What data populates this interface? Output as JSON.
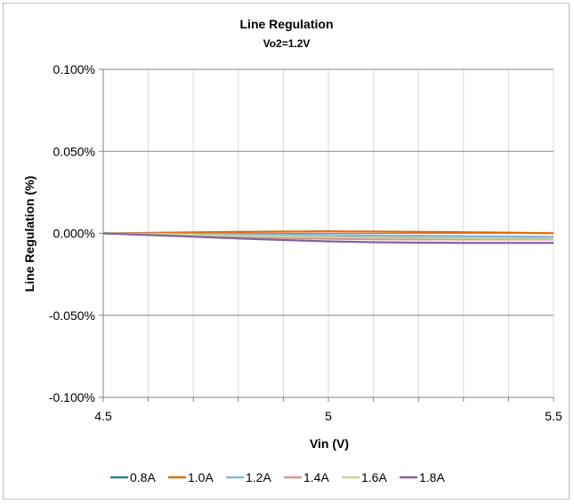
{
  "chart_data": {
    "type": "line",
    "title": "Line Regulation",
    "subtitle": "Vo2=1.2V",
    "xlabel": "Vin (V)",
    "ylabel": "Line Regulation (%)",
    "xlim": [
      4.5,
      5.5
    ],
    "ylim": [
      -0.1,
      0.1
    ],
    "x_ticks": [
      4.5,
      5,
      5.5
    ],
    "x_tick_labels": [
      "4.5",
      "5",
      "5.5"
    ],
    "y_ticks": [
      0.1,
      0.05,
      0.0,
      -0.05,
      -0.1
    ],
    "y_tick_labels": [
      "0.100%",
      "0.050%",
      "0.000%",
      "-0.050%",
      "-0.100%"
    ],
    "x_gridlines": [
      4.5,
      4.6,
      4.7,
      4.8,
      4.9,
      5.0,
      5.1,
      5.2,
      5.3,
      5.4,
      5.5
    ],
    "grid": true,
    "legend_position": "bottom",
    "x": [
      4.5,
      4.6,
      4.7,
      4.8,
      4.9,
      5.0,
      5.1,
      5.2,
      5.3,
      5.4,
      5.5
    ],
    "series": [
      {
        "name": "0.8A",
        "color": "#2e7d9a",
        "values": [
          0.0,
          -0.0005,
          -0.001,
          -0.0014,
          -0.0017,
          -0.002,
          -0.0022,
          -0.0024,
          -0.0025,
          -0.0026,
          -0.0027
        ]
      },
      {
        "name": "1.0A",
        "color": "#e46c0a",
        "values": [
          0.0,
          0.0003,
          0.0006,
          0.0009,
          0.0011,
          0.0012,
          0.0011,
          0.0009,
          0.0007,
          0.0004,
          0.0001
        ]
      },
      {
        "name": "1.2A",
        "color": "#8eb4e3",
        "values": [
          0.0,
          -0.0002,
          -0.0004,
          -0.0006,
          -0.0008,
          -0.001,
          -0.0012,
          -0.0014,
          -0.0017,
          -0.0019,
          -0.0021
        ]
      },
      {
        "name": "1.4A",
        "color": "#d99694",
        "values": [
          0.0,
          -0.0007,
          -0.0015,
          -0.0022,
          -0.0028,
          -0.0033,
          -0.0036,
          -0.0037,
          -0.0037,
          -0.0037,
          -0.0037
        ]
      },
      {
        "name": "1.6A",
        "color": "#c3d69b",
        "values": [
          0.0,
          -0.0005,
          -0.001,
          -0.0015,
          -0.0019,
          -0.0022,
          -0.0025,
          -0.0027,
          -0.0029,
          -0.0031,
          -0.0033
        ]
      },
      {
        "name": "1.8A",
        "color": "#8064a2",
        "values": [
          0.0,
          -0.001,
          -0.002,
          -0.0031,
          -0.0041,
          -0.0049,
          -0.0054,
          -0.0057,
          -0.0058,
          -0.0058,
          -0.0058
        ]
      }
    ]
  }
}
